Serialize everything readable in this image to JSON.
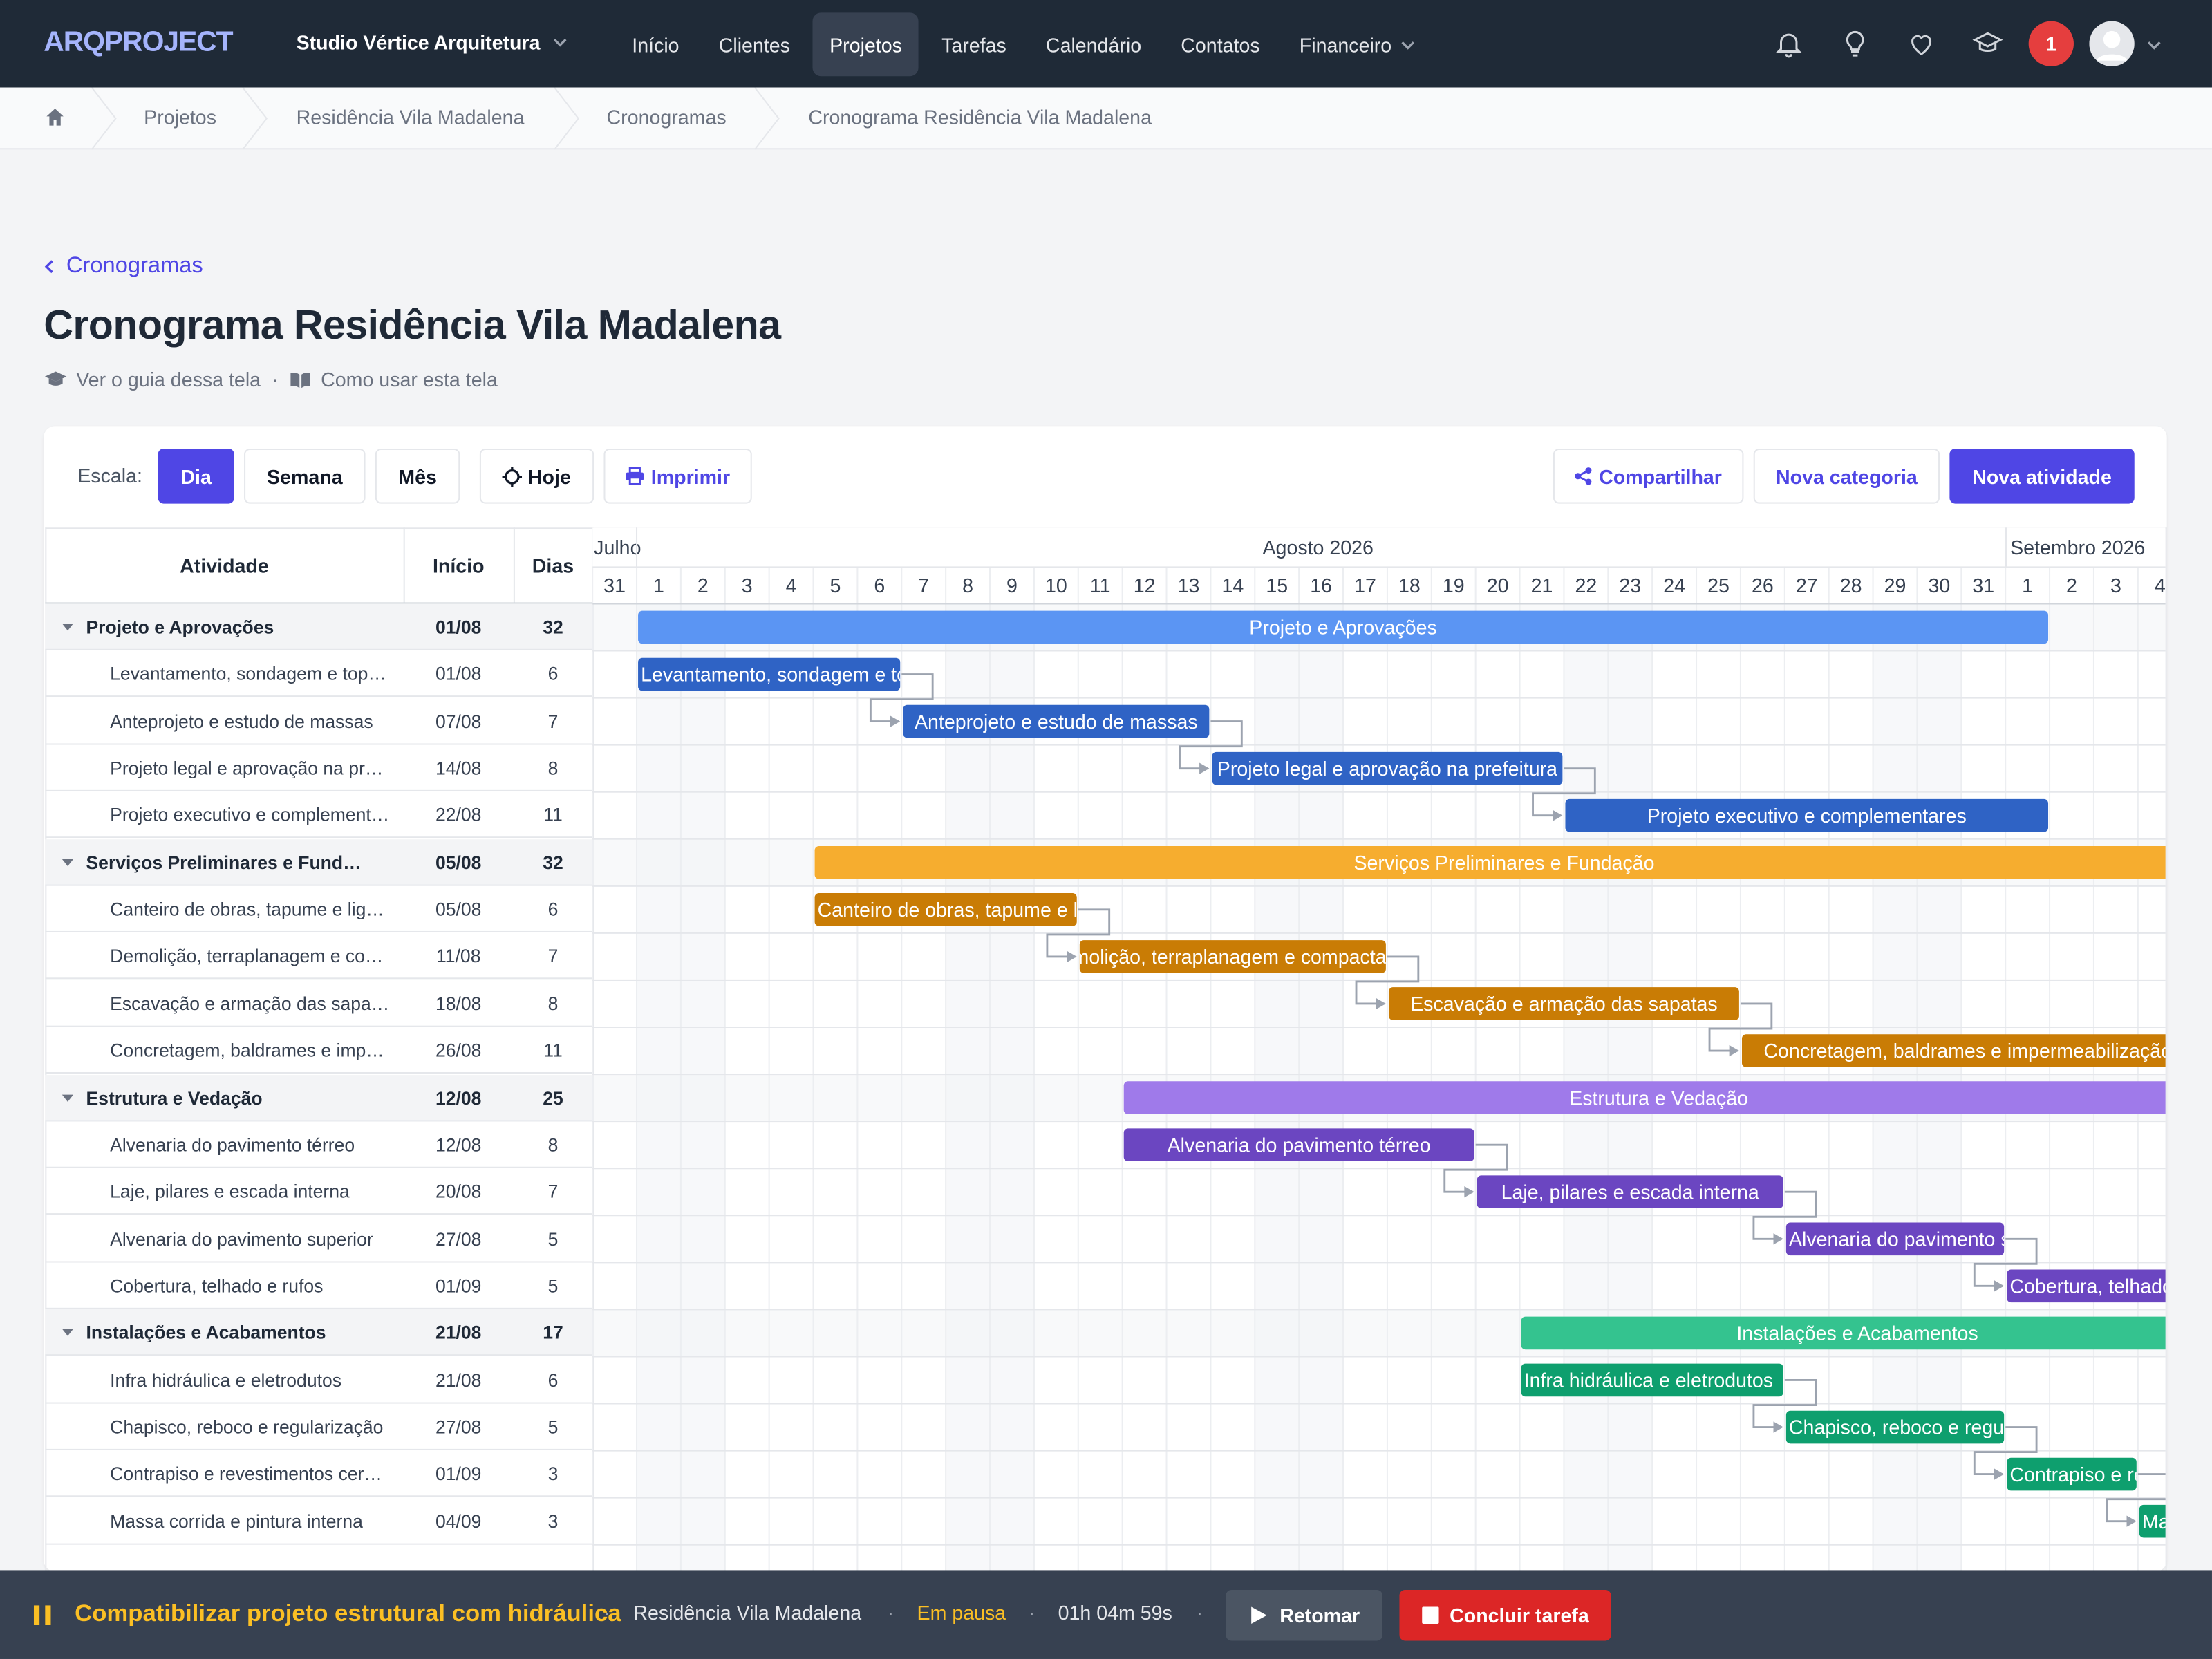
{
  "app": {
    "logo": "ARQPROJECT",
    "company": "Studio Vértice Arquitetura"
  },
  "nav": [
    {
      "label": "Início"
    },
    {
      "label": "Clientes"
    },
    {
      "label": "Projetos",
      "active": true
    },
    {
      "label": "Tarefas"
    },
    {
      "label": "Calendário"
    },
    {
      "label": "Contatos"
    },
    {
      "label": "Financeiro",
      "dropdown": true
    }
  ],
  "topbar": {
    "notification_count": "1"
  },
  "breadcrumb": [
    "Projetos",
    "Residência Vila Madalena",
    "Cronogramas",
    "Cronograma Residência Vila Madalena"
  ],
  "page": {
    "back_label": "Cronogramas",
    "title": "Cronograma Residência Vila Madalena",
    "guide_label": "Ver o guia dessa tela",
    "howto_label": "Como usar esta tela"
  },
  "toolbar": {
    "scale_label": "Escala:",
    "scale_day": "Dia",
    "scale_week": "Semana",
    "scale_month": "Mês",
    "today": "Hoje",
    "print": "Imprimir",
    "share": "Compartilhar",
    "new_category": "Nova categoria",
    "new_activity": "Nova atividade"
  },
  "table": {
    "col_activity": "Atividade",
    "col_start": "Início",
    "col_days": "Dias"
  },
  "timeline": {
    "months": [
      {
        "label": "Julho 2026",
        "shown": "Julho"
      },
      {
        "label": "Agosto 2026"
      },
      {
        "label": "Setembro 2026"
      }
    ],
    "days": [
      "31",
      "1",
      "2",
      "3",
      "4",
      "5",
      "6",
      "7",
      "8",
      "9",
      "10",
      "11",
      "12",
      "13",
      "14",
      "15",
      "16",
      "17",
      "18",
      "19",
      "20",
      "21",
      "22",
      "23",
      "24",
      "25",
      "26",
      "27",
      "28",
      "29",
      "30",
      "31",
      "1",
      "2",
      "3",
      "4"
    ],
    "weekend_cols": [
      1,
      2,
      8,
      9,
      15,
      16,
      22,
      23,
      29,
      30
    ]
  },
  "rows": [
    {
      "type": "cat",
      "name": "Projeto e Aprovações",
      "start": "01/08",
      "days": "32",
      "bar": {
        "s": 1,
        "d": 32,
        "color": "#5b95f3"
      }
    },
    {
      "type": "task",
      "name": "Levantamento, sondagem e topografia",
      "start": "01/08",
      "days": "6",
      "bar": {
        "s": 1,
        "d": 6,
        "color": "#2f63c5"
      }
    },
    {
      "type": "task",
      "name": "Anteprojeto e estudo de massas",
      "start": "07/08",
      "days": "7",
      "bar": {
        "s": 7,
        "d": 7,
        "color": "#2f63c5"
      }
    },
    {
      "type": "task",
      "name": "Projeto legal e aprovação na prefeitura",
      "start": "14/08",
      "days": "8",
      "bar": {
        "s": 14,
        "d": 8,
        "color": "#2f63c5"
      }
    },
    {
      "type": "task",
      "name": "Projeto executivo e complementares",
      "start": "22/08",
      "days": "11",
      "bar": {
        "s": 22,
        "d": 11,
        "color": "#2f63c5"
      }
    },
    {
      "type": "cat",
      "name": "Serviços Preliminares e Fundação",
      "start": "05/08",
      "days": "32",
      "bar": {
        "s": 5,
        "d": 32,
        "color": "#f6ad2f"
      }
    },
    {
      "type": "task",
      "name": "Canteiro de obras, tapume e ligações provisórias",
      "start": "05/08",
      "days": "6",
      "bar": {
        "s": 5,
        "d": 6,
        "color": "#c97c05"
      }
    },
    {
      "type": "task",
      "name": "Demolição, terraplanagem e compactação",
      "start": "11/08",
      "days": "7",
      "bar": {
        "s": 11,
        "d": 7,
        "color": "#c97c05"
      }
    },
    {
      "type": "task",
      "name": "Escavação e armação das sapatas",
      "start": "18/08",
      "days": "8",
      "bar": {
        "s": 18,
        "d": 8,
        "color": "#c97c05"
      }
    },
    {
      "type": "task",
      "name": "Concretagem, baldrames e impermeabilização",
      "start": "26/08",
      "days": "11",
      "bar": {
        "s": 26,
        "d": 11,
        "color": "#c97c05"
      }
    },
    {
      "type": "cat",
      "name": "Estrutura e Vedação",
      "start": "12/08",
      "days": "25",
      "bar": {
        "s": 12,
        "d": 25,
        "color": "#9f7aea"
      }
    },
    {
      "type": "task",
      "name": "Alvenaria do pavimento térreo",
      "start": "12/08",
      "days": "8",
      "bar": {
        "s": 12,
        "d": 8,
        "color": "#6b46c1"
      }
    },
    {
      "type": "task",
      "name": "Laje, pilares e escada interna",
      "start": "20/08",
      "days": "7",
      "bar": {
        "s": 20,
        "d": 7,
        "color": "#6b46c1"
      }
    },
    {
      "type": "task",
      "name": "Alvenaria do pavimento superior",
      "start": "27/08",
      "days": "5",
      "bar": {
        "s": 27,
        "d": 5,
        "color": "#6b46c1"
      }
    },
    {
      "type": "task",
      "name": "Cobertura, telhado e rufos",
      "start": "01/09",
      "days": "5",
      "bar": {
        "s": 32,
        "d": 5,
        "color": "#6b46c1"
      }
    },
    {
      "type": "cat",
      "name": "Instalações e Acabamentos",
      "start": "21/08",
      "days": "17",
      "bar": {
        "s": 21,
        "d": 17,
        "color": "#34c38f"
      }
    },
    {
      "type": "task",
      "name": "Infra hidráulica e eletrodutos",
      "start": "21/08",
      "days": "6",
      "bar": {
        "s": 21,
        "d": 6,
        "color": "#0e9f6e"
      }
    },
    {
      "type": "task",
      "name": "Chapisco, reboco e regularização",
      "start": "27/08",
      "days": "5",
      "bar": {
        "s": 27,
        "d": 5,
        "color": "#0e9f6e"
      }
    },
    {
      "type": "task",
      "name": "Contrapiso e revestimentos cerâmicos",
      "start": "01/09",
      "days": "3",
      "bar": {
        "s": 32,
        "d": 3,
        "color": "#0e9f6e"
      }
    },
    {
      "type": "task",
      "name": "Massa corrida e pintura interna",
      "start": "04/09",
      "days": "3",
      "bar": {
        "s": 35,
        "d": 3,
        "color": "#0e9f6e"
      }
    }
  ],
  "timer": {
    "task": "Compatibilizar projeto estrutural com hidráulica",
    "project": "Residência Vila Madalena",
    "status": "Em pausa",
    "elapsed": "01h 04m 59s",
    "resume": "Retomar",
    "finish": "Concluir tarefa"
  },
  "colors": {
    "accent": "#4f46e5",
    "topbar": "#1f2a37",
    "danger": "#dc2626",
    "timer_text": "#fbbf24"
  }
}
